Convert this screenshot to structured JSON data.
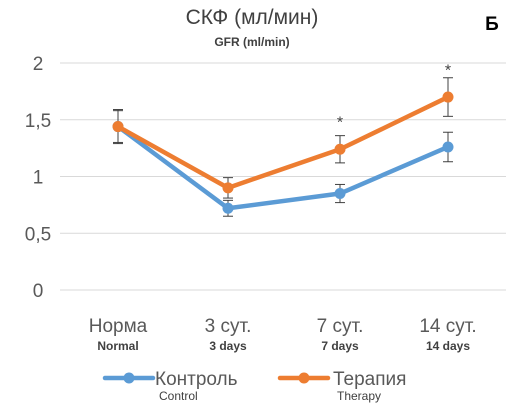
{
  "chart_data": {
    "type": "line",
    "title": "СКФ (мл/мин)",
    "subtitle": "GFR (ml/min)",
    "panel_letter": "Б",
    "categories": [
      "Норма",
      "3 сут.",
      "7 сут.",
      "14 сут."
    ],
    "categories_en": [
      "Normal",
      "3 days",
      "7 days",
      "14 days"
    ],
    "y_ticks": [
      "0",
      "0,5",
      "1",
      "1,5",
      "2"
    ],
    "y_tick_values": [
      0,
      0.5,
      1,
      1.5,
      2
    ],
    "ylim": [
      0,
      2
    ],
    "grid": true,
    "legend_position": "bottom",
    "series": [
      {
        "name": "Контроль",
        "name_en": "Control",
        "color": "#5b9bd5",
        "values": [
          1.44,
          0.72,
          0.85,
          1.26
        ],
        "errors": [
          0.14,
          0.07,
          0.08,
          0.13
        ]
      },
      {
        "name": "Терапия",
        "name_en": "Therapy",
        "color": "#ed7d31",
        "values": [
          1.44,
          0.9,
          1.24,
          1.7
        ],
        "errors": [
          0.15,
          0.09,
          0.12,
          0.17
        ]
      }
    ],
    "annotations": [
      {
        "text": "*",
        "category_index": 2,
        "y": 1.52
      },
      {
        "text": "*",
        "category_index": 3,
        "y": 1.98
      }
    ]
  }
}
